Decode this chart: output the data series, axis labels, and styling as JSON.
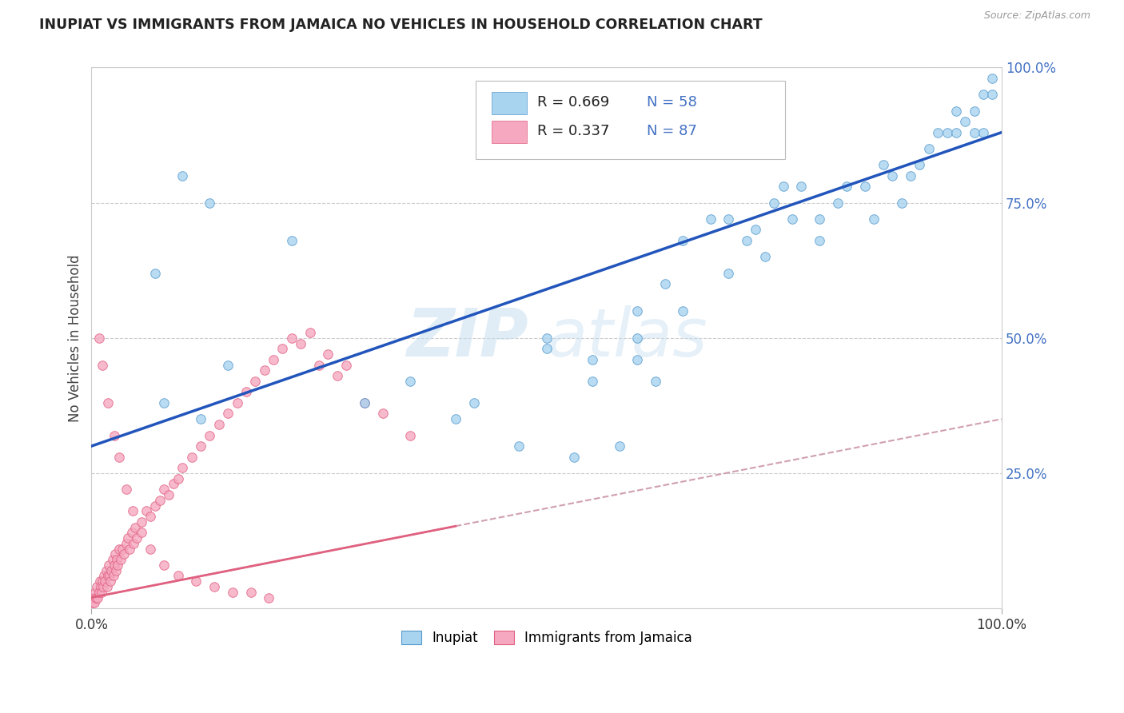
{
  "title": "INUPIAT VS IMMIGRANTS FROM JAMAICA NO VEHICLES IN HOUSEHOLD CORRELATION CHART",
  "source": "Source: ZipAtlas.com",
  "ylabel": "No Vehicles in Household",
  "xlim": [
    0.0,
    1.0
  ],
  "ylim": [
    0.0,
    1.0
  ],
  "yticks": [
    0.0,
    0.25,
    0.5,
    0.75,
    1.0
  ],
  "ytick_labels": [
    "",
    "25.0%",
    "50.0%",
    "75.0%",
    "100.0%"
  ],
  "xtick_labels": [
    "0.0%",
    "100.0%"
  ],
  "watermark_zip": "ZIP",
  "watermark_atlas": "atlas",
  "legend_r1": "R = 0.669",
  "legend_n1": "N = 58",
  "legend_r2": "R = 0.337",
  "legend_n2": "N = 87",
  "color_blue": "#A8D4F0",
  "color_pink": "#F5A8C0",
  "line_blue": "#2255BB",
  "line_pink": "#E06080",
  "line_dashed_color": "#D0A0B0",
  "background": "#FFFFFF",
  "grid_color": "#CCCCCC",
  "blue_intercept": 0.3,
  "blue_slope": 0.58,
  "pink_intercept": 0.02,
  "pink_slope": 0.33,
  "inupiat_x": [
    0.07,
    0.22,
    0.3,
    0.35,
    0.1,
    0.13,
    0.4,
    0.5,
    0.55,
    0.6,
    0.6,
    0.63,
    0.65,
    0.68,
    0.7,
    0.72,
    0.73,
    0.75,
    0.76,
    0.77,
    0.78,
    0.8,
    0.8,
    0.82,
    0.83,
    0.85,
    0.86,
    0.87,
    0.88,
    0.89,
    0.9,
    0.91,
    0.92,
    0.93,
    0.94,
    0.95,
    0.95,
    0.96,
    0.97,
    0.97,
    0.98,
    0.98,
    0.99,
    0.99,
    0.7,
    0.74,
    0.6,
    0.65,
    0.5,
    0.55,
    0.15,
    0.08,
    0.12,
    0.42,
    0.47,
    0.53,
    0.58,
    0.62
  ],
  "inupiat_y": [
    0.62,
    0.68,
    0.38,
    0.42,
    0.8,
    0.75,
    0.35,
    0.48,
    0.46,
    0.46,
    0.5,
    0.6,
    0.68,
    0.72,
    0.72,
    0.68,
    0.7,
    0.75,
    0.78,
    0.72,
    0.78,
    0.68,
    0.72,
    0.75,
    0.78,
    0.78,
    0.72,
    0.82,
    0.8,
    0.75,
    0.8,
    0.82,
    0.85,
    0.88,
    0.88,
    0.92,
    0.88,
    0.9,
    0.88,
    0.92,
    0.88,
    0.95,
    0.95,
    0.98,
    0.62,
    0.65,
    0.55,
    0.55,
    0.5,
    0.42,
    0.45,
    0.38,
    0.35,
    0.38,
    0.3,
    0.28,
    0.3,
    0.42
  ],
  "jamaica_x": [
    0.001,
    0.002,
    0.003,
    0.004,
    0.005,
    0.006,
    0.007,
    0.008,
    0.009,
    0.01,
    0.011,
    0.012,
    0.013,
    0.014,
    0.015,
    0.016,
    0.017,
    0.018,
    0.019,
    0.02,
    0.021,
    0.022,
    0.023,
    0.024,
    0.025,
    0.026,
    0.027,
    0.028,
    0.029,
    0.03,
    0.032,
    0.034,
    0.036,
    0.038,
    0.04,
    0.042,
    0.044,
    0.046,
    0.048,
    0.05,
    0.055,
    0.06,
    0.065,
    0.07,
    0.075,
    0.08,
    0.085,
    0.09,
    0.095,
    0.1,
    0.11,
    0.12,
    0.13,
    0.14,
    0.15,
    0.16,
    0.17,
    0.18,
    0.19,
    0.2,
    0.21,
    0.22,
    0.23,
    0.24,
    0.25,
    0.26,
    0.27,
    0.28,
    0.3,
    0.32,
    0.35,
    0.008,
    0.012,
    0.018,
    0.025,
    0.03,
    0.038,
    0.045,
    0.055,
    0.065,
    0.08,
    0.095,
    0.115,
    0.135,
    0.155,
    0.175,
    0.195
  ],
  "jamaica_y": [
    0.01,
    0.02,
    0.01,
    0.03,
    0.02,
    0.04,
    0.02,
    0.03,
    0.05,
    0.04,
    0.03,
    0.05,
    0.04,
    0.06,
    0.05,
    0.07,
    0.04,
    0.06,
    0.08,
    0.06,
    0.05,
    0.07,
    0.09,
    0.06,
    0.08,
    0.1,
    0.07,
    0.09,
    0.08,
    0.11,
    0.09,
    0.11,
    0.1,
    0.12,
    0.13,
    0.11,
    0.14,
    0.12,
    0.15,
    0.13,
    0.16,
    0.18,
    0.17,
    0.19,
    0.2,
    0.22,
    0.21,
    0.23,
    0.24,
    0.26,
    0.28,
    0.3,
    0.32,
    0.34,
    0.36,
    0.38,
    0.4,
    0.42,
    0.44,
    0.46,
    0.48,
    0.5,
    0.49,
    0.51,
    0.45,
    0.47,
    0.43,
    0.45,
    0.38,
    0.36,
    0.32,
    0.5,
    0.45,
    0.38,
    0.32,
    0.28,
    0.22,
    0.18,
    0.14,
    0.11,
    0.08,
    0.06,
    0.05,
    0.04,
    0.03,
    0.03,
    0.02
  ]
}
